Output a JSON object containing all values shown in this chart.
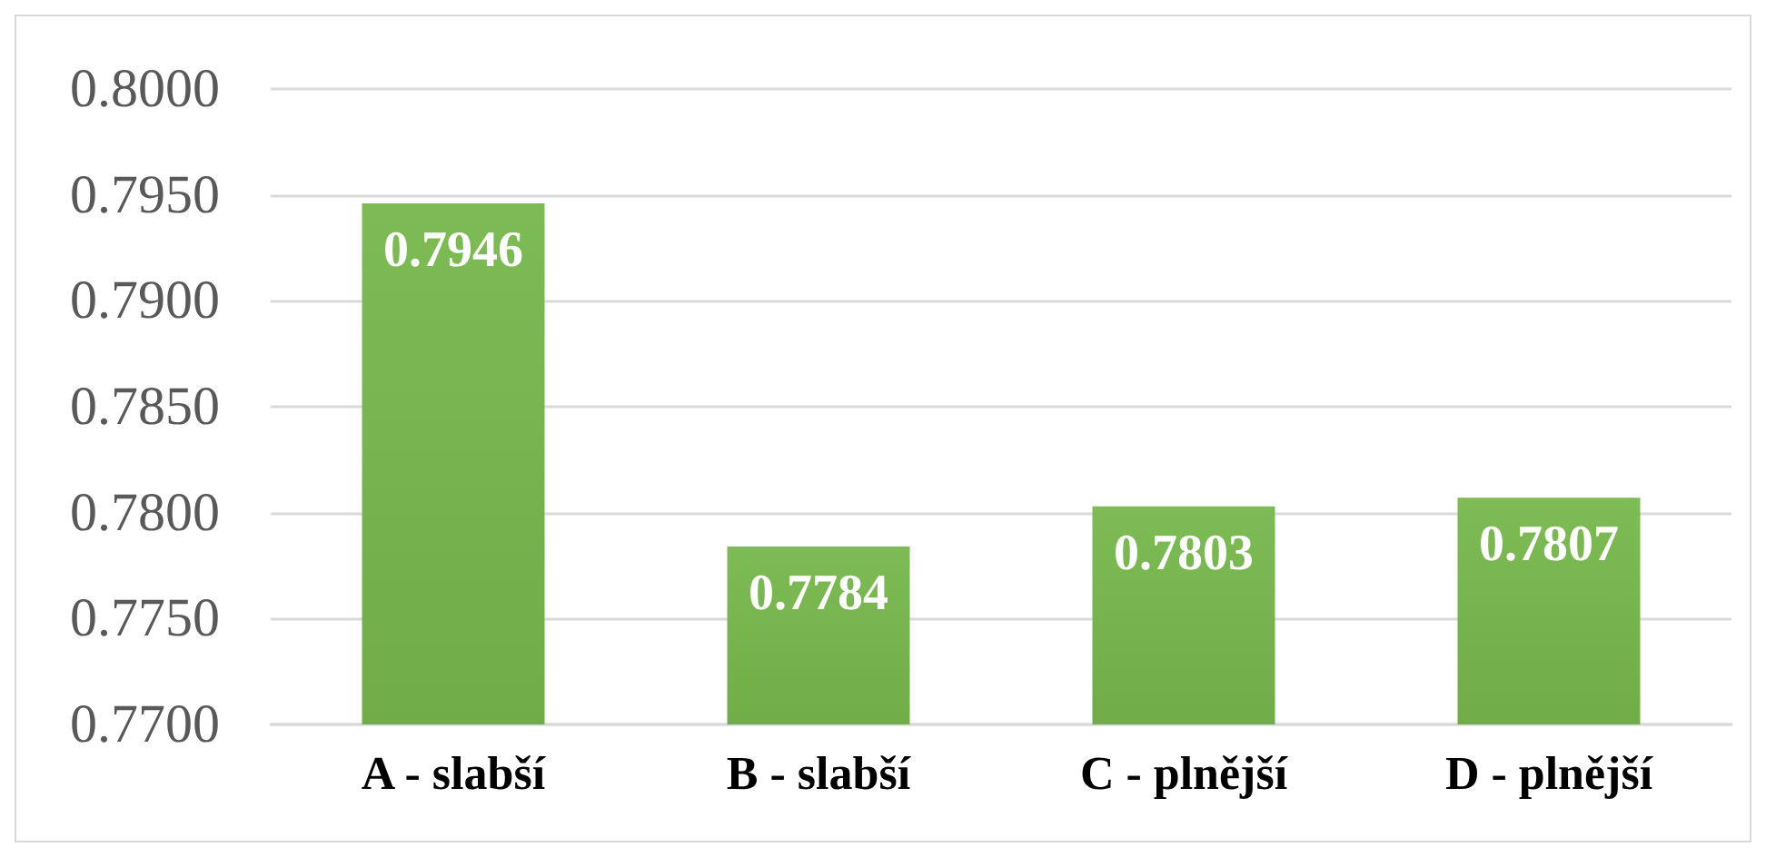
{
  "chart_data": {
    "type": "bar",
    "categories": [
      "A - slabší",
      "B - slabší",
      "C - plnější",
      "D - plnější"
    ],
    "values": [
      0.7946,
      0.7784,
      0.7803,
      0.7807
    ],
    "color": "#70ad47",
    "ylim": [
      0.77,
      0.8
    ],
    "yticks": [
      {
        "value": 0.77,
        "label": "0.7700"
      },
      {
        "value": 0.775,
        "label": "0.7750"
      },
      {
        "value": 0.78,
        "label": "0.7800"
      },
      {
        "value": 0.785,
        "label": "0.7850"
      },
      {
        "value": 0.79,
        "label": "0.7900"
      },
      {
        "value": 0.795,
        "label": "0.7950"
      },
      {
        "value": 0.8,
        "label": "0.8000"
      }
    ],
    "grid": "y",
    "data_labels": true
  }
}
